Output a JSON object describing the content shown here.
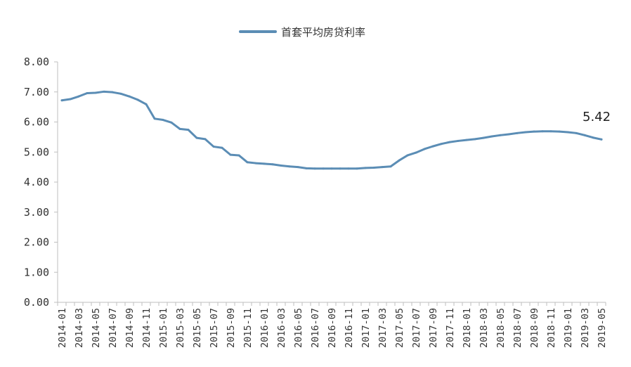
{
  "chart_data": {
    "type": "line",
    "title": "",
    "xlabel": "",
    "ylabel": "",
    "ylim": [
      0,
      8
    ],
    "y_ticks": [
      "0.00",
      "1.00",
      "2.00",
      "3.00",
      "4.00",
      "5.00",
      "6.00",
      "7.00",
      "8.00"
    ],
    "x_tick_labels": [
      "2014-01",
      "2014-03",
      "2014-05",
      "2014-07",
      "2014-09",
      "2014-11",
      "2015-01",
      "2015-03",
      "2015-05",
      "2015-07",
      "2015-09",
      "2015-11",
      "2016-01",
      "2016-03",
      "2016-05",
      "2016-07",
      "2016-09",
      "2016-11",
      "2017-01",
      "2017-03",
      "2017-05",
      "2017-07",
      "2017-09",
      "2017-11",
      "2018-01",
      "2018-03",
      "2018-05",
      "2018-07",
      "2018-09",
      "2018-11",
      "2019-01",
      "2019-03",
      "2019-05"
    ],
    "grid": false,
    "legend_position": "top-center",
    "annotation": "5.42",
    "series": [
      {
        "name": "首套平均房贷利率",
        "color": "#5b8db5",
        "x": [
          "2014-01",
          "2014-02",
          "2014-03",
          "2014-04",
          "2014-05",
          "2014-06",
          "2014-07",
          "2014-08",
          "2014-09",
          "2014-10",
          "2014-11",
          "2014-12",
          "2015-01",
          "2015-02",
          "2015-03",
          "2015-04",
          "2015-05",
          "2015-06",
          "2015-07",
          "2015-08",
          "2015-09",
          "2015-10",
          "2015-11",
          "2015-12",
          "2016-01",
          "2016-02",
          "2016-03",
          "2016-04",
          "2016-05",
          "2016-06",
          "2016-07",
          "2016-08",
          "2016-09",
          "2016-10",
          "2016-11",
          "2016-12",
          "2017-01",
          "2017-02",
          "2017-03",
          "2017-04",
          "2017-05",
          "2017-06",
          "2017-07",
          "2017-08",
          "2017-09",
          "2017-10",
          "2017-11",
          "2017-12",
          "2018-01",
          "2018-02",
          "2018-03",
          "2018-04",
          "2018-05",
          "2018-06",
          "2018-07",
          "2018-08",
          "2018-09",
          "2018-10",
          "2018-11",
          "2018-12",
          "2019-01",
          "2019-02",
          "2019-03",
          "2019-04",
          "2019-05"
        ],
        "values": [
          6.72,
          6.76,
          6.85,
          6.96,
          6.97,
          7.01,
          6.99,
          6.94,
          6.85,
          6.74,
          6.59,
          6.11,
          6.07,
          5.98,
          5.77,
          5.74,
          5.47,
          5.43,
          5.18,
          5.14,
          4.91,
          4.89,
          4.66,
          4.63,
          4.61,
          4.59,
          4.55,
          4.52,
          4.5,
          4.46,
          4.45,
          4.45,
          4.45,
          4.45,
          4.45,
          4.45,
          4.47,
          4.48,
          4.5,
          4.52,
          4.72,
          4.89,
          4.98,
          5.1,
          5.19,
          5.27,
          5.33,
          5.37,
          5.4,
          5.43,
          5.47,
          5.52,
          5.56,
          5.59,
          5.63,
          5.66,
          5.68,
          5.69,
          5.69,
          5.68,
          5.66,
          5.63,
          5.56,
          5.48,
          5.42
        ]
      }
    ]
  }
}
